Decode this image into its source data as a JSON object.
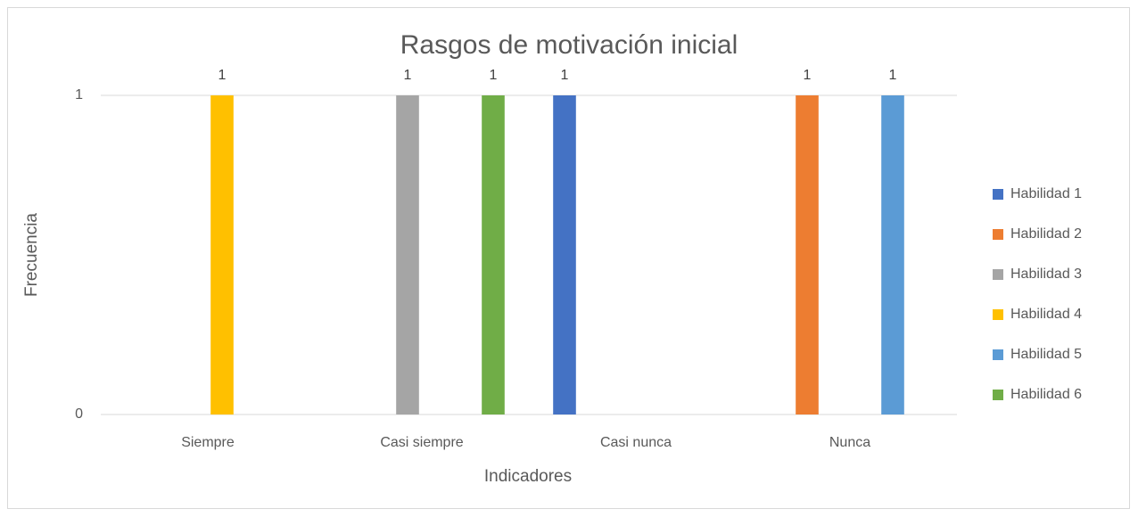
{
  "chart_data": {
    "type": "bar",
    "title": "Rasgos de motivación inicial",
    "x_label": "Indicadores",
    "y_label": "Frecuencia",
    "categories": [
      "Siempre",
      "Casi siempre",
      "Casi nunca",
      "Nunca"
    ],
    "series": [
      {
        "name": "Habilidad 1",
        "color": "#4472c4",
        "values": [
          null,
          null,
          1,
          null
        ]
      },
      {
        "name": "Habilidad 2",
        "color": "#ed7d31",
        "values": [
          null,
          null,
          null,
          1
        ]
      },
      {
        "name": "Habilidad 3",
        "color": "#a5a5a5",
        "values": [
          null,
          1,
          null,
          null
        ]
      },
      {
        "name": "Habilidad 4",
        "color": "#ffc000",
        "values": [
          1,
          null,
          null,
          null
        ]
      },
      {
        "name": "Habilidad 5",
        "color": "#5b9bd5",
        "values": [
          null,
          null,
          null,
          1
        ]
      },
      {
        "name": "Habilidad 6",
        "color": "#70ad47",
        "values": [
          null,
          1,
          null,
          null
        ]
      }
    ],
    "ylim": [
      0,
      1
    ],
    "yticks": [
      0,
      1
    ],
    "grid": true,
    "legend": "right"
  }
}
